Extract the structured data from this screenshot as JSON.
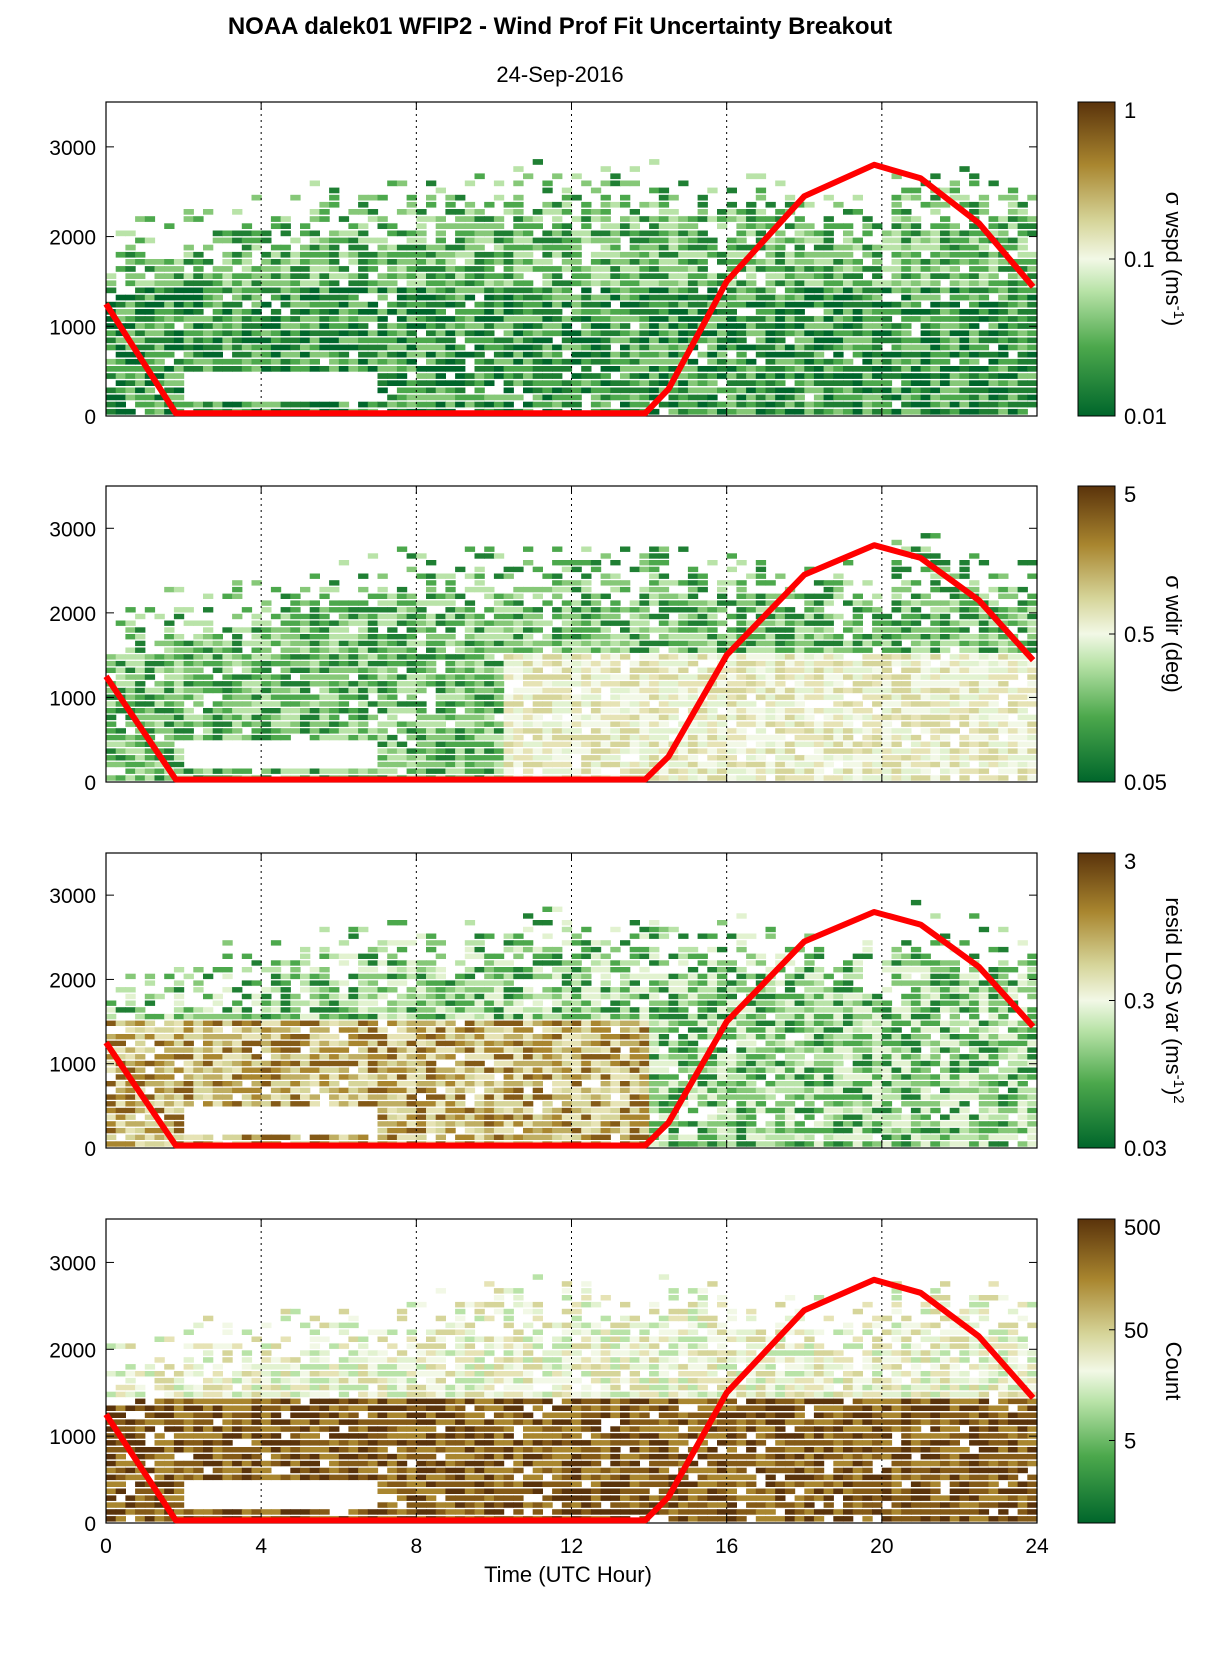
{
  "title": "NOAA dalek01 WFIP2 - Wind Prof Fit Uncertainty Breakout",
  "subtitle": "24-Sep-2016",
  "chart_data": [
    {
      "type": "heatmap",
      "panel": 1,
      "x": {
        "ticks": [
          0,
          4,
          8,
          12,
          16,
          20,
          24
        ],
        "tick_labels": [
          "0",
          "4",
          "8",
          "12",
          "16",
          "20",
          "24"
        ],
        "range": [
          0,
          24
        ]
      },
      "y": {
        "ticks": [
          0,
          1000,
          2000,
          3000
        ],
        "tick_labels": [
          "0",
          "1000",
          "2000",
          "3000"
        ],
        "range": [
          0,
          3500
        ]
      },
      "colorbar": {
        "label": "σ wspd (ms",
        "label_sup": "-1",
        "label_end": ")",
        "tick_labels": [
          "1",
          "0.1",
          "0.01"
        ],
        "tick_values": [
          1,
          0.1,
          0.01
        ],
        "scale": "log",
        "range": [
          0.01,
          1
        ]
      },
      "overlay_line": {
        "name": "",
        "color": "#ff0000",
        "x": [
          0,
          1.8,
          13.9,
          14.5,
          16,
          18,
          19.8,
          21,
          22.5,
          23.9
        ],
        "y": [
          1250,
          30,
          30,
          300,
          1500,
          2450,
          2800,
          2650,
          2150,
          1440
        ]
      }
    },
    {
      "type": "heatmap",
      "panel": 2,
      "x": {
        "ticks": [
          0,
          4,
          8,
          12,
          16,
          20,
          24
        ],
        "tick_labels": [
          "0",
          "4",
          "8",
          "12",
          "16",
          "20",
          "24"
        ],
        "range": [
          0,
          24
        ]
      },
      "y": {
        "ticks": [
          0,
          1000,
          2000,
          3000
        ],
        "tick_labels": [
          "0",
          "1000",
          "2000",
          "3000"
        ],
        "range": [
          0,
          3500
        ]
      },
      "colorbar": {
        "label": "σ wdir (deg)",
        "label_sup": "",
        "label_end": "",
        "tick_labels": [
          "5",
          "0.5",
          "0.05"
        ],
        "tick_values": [
          5,
          0.5,
          0.05
        ],
        "scale": "log",
        "range": [
          0.05,
          5
        ]
      },
      "overlay_line": {
        "name": "",
        "color": "#ff0000",
        "x": [
          0,
          1.8,
          13.9,
          14.5,
          16,
          18,
          19.8,
          21,
          22.5,
          23.9
        ],
        "y": [
          1250,
          30,
          30,
          300,
          1500,
          2450,
          2800,
          2650,
          2150,
          1440
        ]
      }
    },
    {
      "type": "heatmap",
      "panel": 3,
      "x": {
        "ticks": [
          0,
          4,
          8,
          12,
          16,
          20,
          24
        ],
        "tick_labels": [
          "0",
          "4",
          "8",
          "12",
          "16",
          "20",
          "24"
        ],
        "range": [
          0,
          24
        ]
      },
      "y": {
        "ticks": [
          0,
          1000,
          2000,
          3000
        ],
        "tick_labels": [
          "0",
          "1000",
          "2000",
          "3000"
        ],
        "range": [
          0,
          3500
        ]
      },
      "colorbar": {
        "label": "resid LOS var (ms",
        "label_sup": "-1",
        "label_end": ")",
        "label_sup2": "2",
        "tick_labels": [
          "3",
          "0.3",
          "0.03"
        ],
        "tick_values": [
          3,
          0.3,
          0.03
        ],
        "scale": "log",
        "range": [
          0.03,
          3
        ]
      },
      "overlay_line": {
        "name": "",
        "color": "#ff0000",
        "x": [
          0,
          1.8,
          13.9,
          14.5,
          16,
          18,
          19.8,
          21,
          22.5,
          23.9
        ],
        "y": [
          1250,
          30,
          30,
          300,
          1500,
          2450,
          2800,
          2650,
          2150,
          1440
        ]
      }
    },
    {
      "type": "heatmap",
      "panel": 4,
      "x": {
        "ticks": [
          0,
          4,
          8,
          12,
          16,
          20,
          24
        ],
        "tick_labels": [
          "0",
          "4",
          "8",
          "12",
          "16",
          "20",
          "24"
        ],
        "range": [
          0,
          24
        ],
        "label": "Time (UTC Hour)"
      },
      "y": {
        "ticks": [
          0,
          1000,
          2000,
          3000
        ],
        "tick_labels": [
          "0",
          "1000",
          "2000",
          "3000"
        ],
        "range": [
          0,
          3500
        ]
      },
      "colorbar": {
        "label": "Count",
        "label_sup": "",
        "label_end": "",
        "tick_labels": [
          "500",
          "50",
          "5"
        ],
        "tick_values": [
          500,
          50,
          5
        ],
        "scale": "log",
        "range": [
          0.9,
          500
        ]
      },
      "overlay_line": {
        "name": "",
        "color": "#ff0000",
        "x": [
          0,
          1.8,
          13.9,
          14.5,
          16,
          18,
          19.8,
          21,
          22.5,
          23.9
        ],
        "y": [
          1250,
          30,
          30,
          300,
          1500,
          2450,
          2800,
          2650,
          2150,
          1440
        ]
      }
    }
  ]
}
